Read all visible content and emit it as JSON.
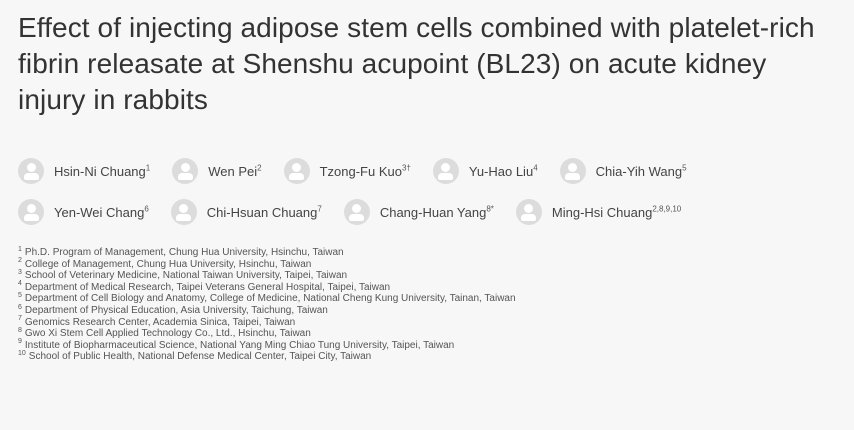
{
  "title": "Effect of injecting adipose stem cells combined with platelet-rich fibrin releasate at Shenshu acupoint (BL23) on acute kidney injury in rabbits",
  "authors": [
    {
      "name": "Hsin-Ni Chuang",
      "sup": "1"
    },
    {
      "name": "Wen Pei",
      "sup": "2"
    },
    {
      "name": "Tzong-Fu Kuo",
      "sup": "3†"
    },
    {
      "name": "Yu-Hao Liu",
      "sup": "4"
    },
    {
      "name": "Chia-Yih Wang",
      "sup": "5"
    },
    {
      "name": "Yen-Wei Chang",
      "sup": "6"
    },
    {
      "name": "Chi-Hsuan Chuang",
      "sup": "7"
    },
    {
      "name": "Chang-Huan Yang",
      "sup": "8*"
    },
    {
      "name": "Ming-Hsi Chuang",
      "sup": "2,8,9,10"
    }
  ],
  "affiliations": [
    {
      "num": "1",
      "text": "Ph.D. Program of Management, Chung Hua University, Hsinchu, Taiwan"
    },
    {
      "num": "2",
      "text": "College of Management, Chung Hua University, Hsinchu, Taiwan"
    },
    {
      "num": "3",
      "text": "School of Veterinary Medicine, National Taiwan University, Taipei, Taiwan"
    },
    {
      "num": "4",
      "text": "Department of Medical Research, Taipei Veterans General Hospital, Taipei, Taiwan"
    },
    {
      "num": "5",
      "text": "Department of Cell Biology and Anatomy, College of Medicine, National Cheng Kung University, Tainan, Taiwan"
    },
    {
      "num": "6",
      "text": "Department of Physical Education, Asia University, Taichung, Taiwan"
    },
    {
      "num": "7",
      "text": "Genomics Research Center, Academia Sinica, Taipei, Taiwan"
    },
    {
      "num": "8",
      "text": "Gwo Xi Stem Cell Applied Technology Co., Ltd., Hsinchu, Taiwan"
    },
    {
      "num": "9",
      "text": "Institute of Biopharmaceutical Science, National Yang Ming Chiao Tung University, Taipei, Taiwan"
    },
    {
      "num": "10",
      "text": "School of Public Health, National Defense Medical Center, Taipei City, Taiwan"
    }
  ],
  "icons": {
    "avatar": "user-avatar-icon"
  }
}
